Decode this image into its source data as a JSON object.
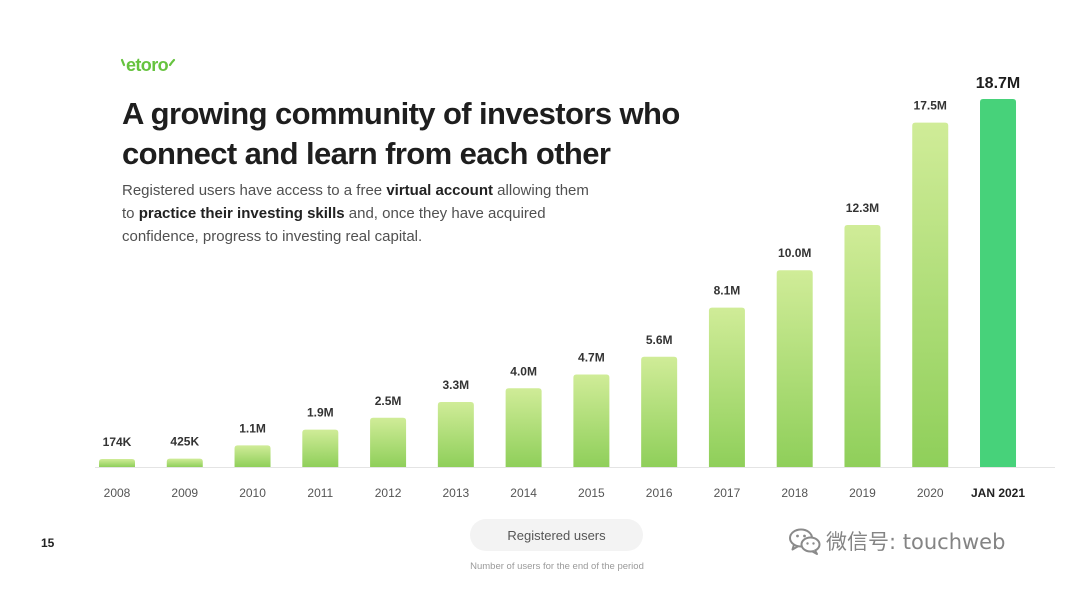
{
  "slide": {
    "page_number": "15"
  },
  "logo": {
    "text": "etoro",
    "color": "#66c33f"
  },
  "header": {
    "title_lines": [
      "A growing community of investors who",
      "connect and learn from each other"
    ],
    "subtitle_lines": [
      [
        "Registered users have access to a free ",
        "virtual account",
        " allowing them"
      ],
      [
        "to ",
        "practice their investing skills",
        " and, once they have acquired"
      ],
      [
        "confidence, progress to investing real capital."
      ]
    ]
  },
  "chart_data": {
    "type": "bar",
    "categories": [
      "2008",
      "2009",
      "2010",
      "2011",
      "2012",
      "2013",
      "2014",
      "2015",
      "2016",
      "2017",
      "2018",
      "2019",
      "2020",
      "JAN 2021"
    ],
    "series": [
      {
        "name": "Registered users",
        "values": [
          174000,
          425000,
          1100000,
          1900000,
          2500000,
          3300000,
          4000000,
          4700000,
          5600000,
          8100000,
          10000000,
          12300000,
          17500000,
          18700000
        ]
      }
    ],
    "value_labels": [
      "174K",
      "425K",
      "1.1M",
      "1.9M",
      "2.5M",
      "3.3M",
      "4.0M",
      "4.7M",
      "5.6M",
      "8.1M",
      "10.0M",
      "12.3M",
      "17.5M",
      "18.7M"
    ],
    "highlight_index": 13,
    "ylim": [
      0,
      18700000
    ],
    "y_axis_visible": false,
    "grid": false,
    "legend": {
      "placement": "bottom-center"
    },
    "note": "Number of users for the end of the period",
    "colors": {
      "bar_top": "#d0ec98",
      "bar_bottom": "#8fcf5a",
      "highlight": "#47d27a",
      "baseline": "#e4e4e4"
    }
  },
  "watermark": {
    "text": "微信号: touchweb",
    "icon": "wechat-icon"
  }
}
